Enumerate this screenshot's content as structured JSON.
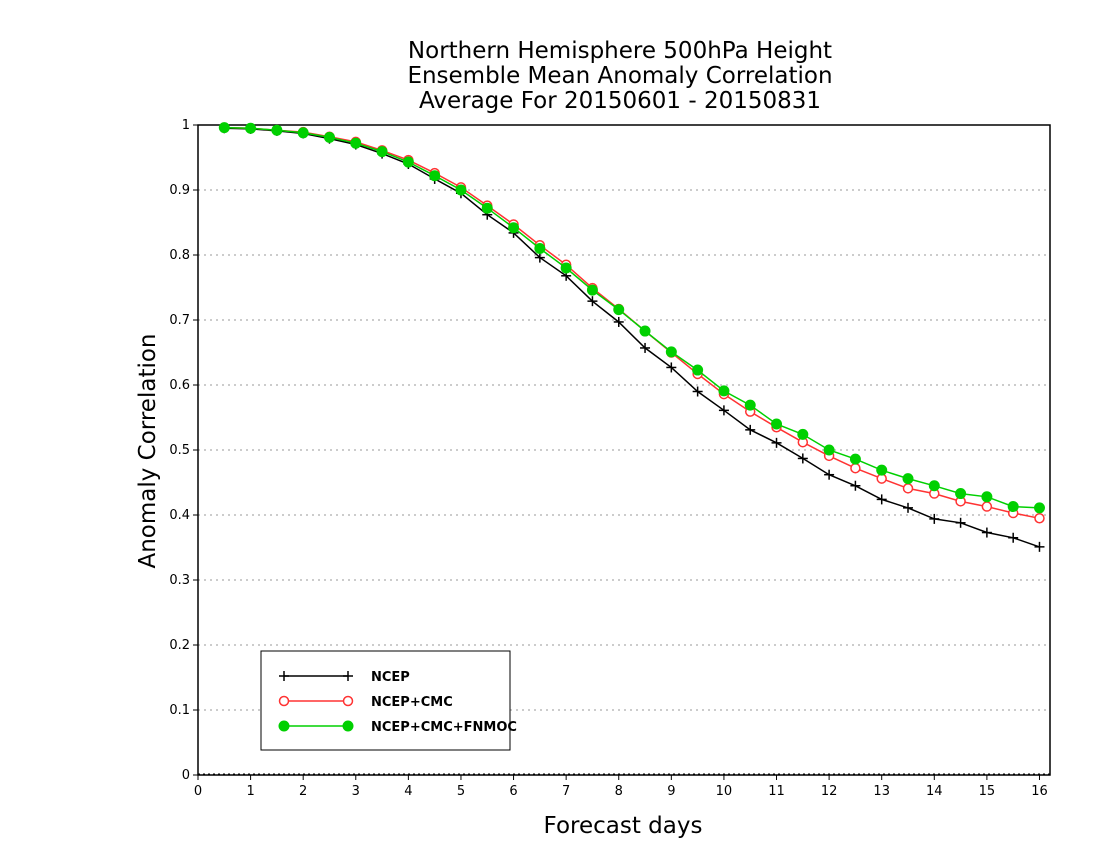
{
  "chart_data": {
    "type": "line",
    "title_lines": [
      "Northern Hemisphere 500hPa Height",
      "Ensemble Mean Anomaly Correlation",
      "Average For 20150601 - 20150831"
    ],
    "xlabel": "Forecast days",
    "ylabel": "Anomaly Correlation",
    "xlim": [
      0,
      16.2
    ],
    "ylim": [
      0,
      1
    ],
    "xticks": [
      0,
      1,
      2,
      3,
      4,
      5,
      6,
      7,
      8,
      9,
      10,
      11,
      12,
      13,
      14,
      15,
      16
    ],
    "yticks": [
      0,
      0.1,
      0.2,
      0.3,
      0.4,
      0.5,
      0.6,
      0.7,
      0.8,
      0.9,
      1
    ],
    "ytick_labels": [
      "0",
      "0.1",
      "0.2",
      "0.3",
      "0.4",
      "0.5",
      "0.6",
      "0.7",
      "0.8",
      "0.9",
      "1"
    ],
    "grid": "horizontal dotted",
    "legend_position": "bottom-left",
    "x": [
      0.5,
      1.0,
      1.5,
      2.0,
      2.5,
      3.0,
      3.5,
      4.0,
      4.5,
      5.0,
      5.5,
      6.0,
      6.5,
      7.0,
      7.5,
      8.0,
      8.5,
      9.0,
      9.5,
      10.0,
      10.5,
      11.0,
      11.5,
      12.0,
      12.5,
      13.0,
      13.5,
      14.0,
      14.5,
      15.0,
      15.5,
      16.0
    ],
    "series": [
      {
        "name": "NCEP",
        "color": "#000000",
        "marker": "plus",
        "values": [
          0.995,
          0.994,
          0.991,
          0.987,
          0.979,
          0.97,
          0.956,
          0.94,
          0.917,
          0.895,
          0.862,
          0.834,
          0.796,
          0.768,
          0.729,
          0.697,
          0.657,
          0.627,
          0.59,
          0.561,
          0.531,
          0.511,
          0.487,
          0.462,
          0.445,
          0.424,
          0.411,
          0.394,
          0.388,
          0.373,
          0.365,
          0.351
        ]
      },
      {
        "name": "NCEP+CMC",
        "color": "#ff3333",
        "marker": "open-circle",
        "values": [
          0.996,
          0.995,
          0.992,
          0.989,
          0.982,
          0.974,
          0.961,
          0.946,
          0.926,
          0.904,
          0.876,
          0.847,
          0.815,
          0.785,
          0.749,
          0.717,
          0.683,
          0.65,
          0.617,
          0.586,
          0.559,
          0.535,
          0.512,
          0.491,
          0.472,
          0.456,
          0.441,
          0.433,
          0.421,
          0.413,
          0.403,
          0.395
        ]
      },
      {
        "name": "NCEP+CMC+FNMOC",
        "color": "#00d000",
        "marker": "filled-circle",
        "values": [
          0.996,
          0.995,
          0.992,
          0.988,
          0.981,
          0.972,
          0.959,
          0.943,
          0.922,
          0.9,
          0.872,
          0.842,
          0.81,
          0.78,
          0.746,
          0.716,
          0.683,
          0.651,
          0.623,
          0.591,
          0.569,
          0.54,
          0.524,
          0.5,
          0.486,
          0.469,
          0.456,
          0.445,
          0.433,
          0.428,
          0.413,
          0.411
        ]
      }
    ]
  }
}
